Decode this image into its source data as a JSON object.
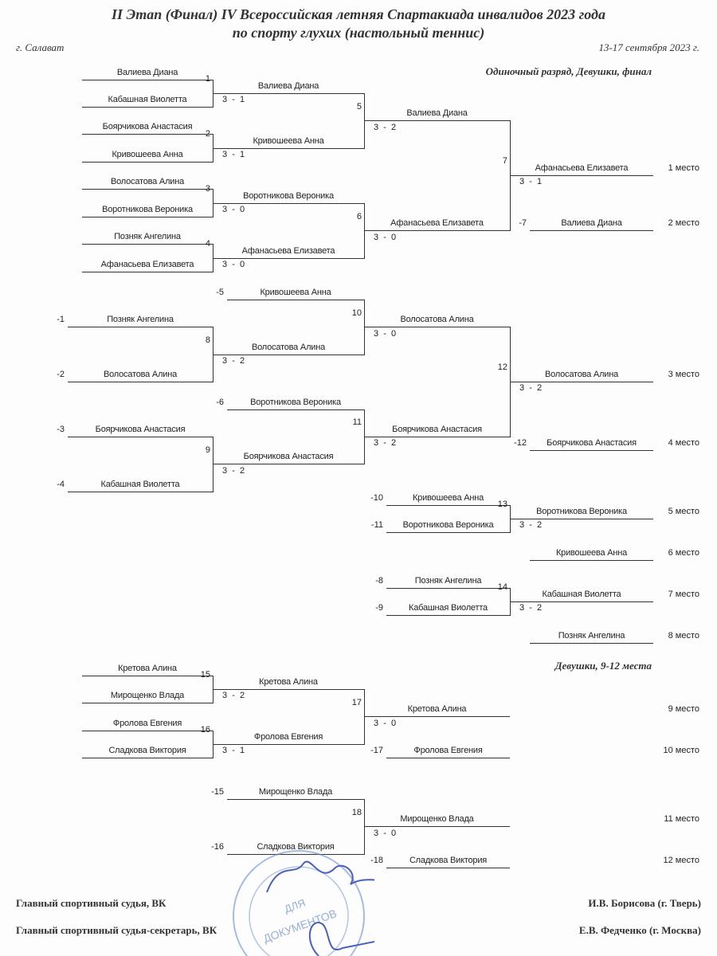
{
  "header": {
    "title_line1": "II Этап (Финал) IV Всероссийская летняя Спартакиада инвалидов 2023 года",
    "title_line2": "по спорту глухих (настольный теннис)",
    "city": "г. Салават",
    "dates": "13-17 сентября 2023 г."
  },
  "sections": {
    "main": "Одиночный разряд, Девушки, финал",
    "places_9_12": "Девушки, 9-12 места"
  },
  "slots": [
    {
      "name": "Валиева Диана"
    },
    {
      "name": "Кабашная Виолетта"
    },
    {
      "name": "Боярчикова Анастасия"
    },
    {
      "name": "Кривошеева Анна"
    },
    {
      "name": "Волосатова Алина"
    },
    {
      "name": "Воротникова Вероника"
    },
    {
      "name": "Позняк Ангелина"
    },
    {
      "name": "Афанасьева Елизавета"
    },
    {
      "name": "Валиева Диана"
    },
    {
      "name": "Кривошеева Анна"
    },
    {
      "name": "Воротникова Вероника"
    },
    {
      "name": "Афанасьева Елизавета"
    },
    {
      "name": "Валиева Диана"
    },
    {
      "name": "Афанасьева Елизавета"
    },
    {
      "name": "Афанасьева Елизавета"
    },
    {
      "name": "Валиева Диана",
      "prefix": "-7"
    },
    {
      "name": "Кривошеева Анна",
      "prefix": "-5"
    },
    {
      "name": "Позняк Ангелина",
      "prefix": "-1"
    },
    {
      "name": "Волосатова Алина"
    },
    {
      "name": "Волосатова Алина",
      "prefix": "-2"
    },
    {
      "name": "Волосатова Алина"
    },
    {
      "name": "Воротникова Вероника",
      "prefix": "-6"
    },
    {
      "name": "Боярчикова Анастасия",
      "prefix": "-3"
    },
    {
      "name": "Боярчикова Анастасия"
    },
    {
      "name": "Кабашная Виолетта",
      "prefix": "-4"
    },
    {
      "name": "Боярчикова Анастасия"
    },
    {
      "name": "Волосатова Алина"
    },
    {
      "name": "Боярчикова Анастасия",
      "prefix": "-12"
    },
    {
      "name": "Кривошеева Анна",
      "prefix": "-10"
    },
    {
      "name": "Воротникова Вероника",
      "prefix": "-11"
    },
    {
      "name": "Воротникова Вероника"
    },
    {
      "name": "Кривошеева Анна"
    },
    {
      "name": "Позняк Ангелина",
      "prefix": "-8"
    },
    {
      "name": "Кабашная Виолетта",
      "prefix": "-9"
    },
    {
      "name": "Кабашная Виолетта"
    },
    {
      "name": "Позняк Ангелина"
    },
    {
      "name": "Кретова Алина"
    },
    {
      "name": "Мирощенко Влада"
    },
    {
      "name": "Фролова Евгения"
    },
    {
      "name": "Сладкова Виктория"
    },
    {
      "name": "Кретова Алина"
    },
    {
      "name": "Фролова Евгения"
    },
    {
      "name": "Кретова Алина"
    },
    {
      "name": "Фролова Евгения",
      "prefix": "-17"
    },
    {
      "name": "Мирощенко Влада",
      "prefix": "-15"
    },
    {
      "name": "Сладкова Виктория",
      "prefix": "-16"
    },
    {
      "name": "Мирощенко Влада"
    },
    {
      "name": "Сладкова Виктория",
      "prefix": "-18"
    }
  ],
  "matches": [
    {
      "number": "1",
      "score": "3  -  1"
    },
    {
      "number": "2",
      "score": "3  -  1"
    },
    {
      "number": "3",
      "score": "3  -  0"
    },
    {
      "number": "4",
      "score": "3  -  0"
    },
    {
      "number": "5",
      "score": "3  -  2"
    },
    {
      "number": "6",
      "score": "3  -  0"
    },
    {
      "number": "7",
      "score": "3  -  1"
    },
    {
      "number": "8",
      "score": "3  -  2"
    },
    {
      "number": "10",
      "score": "3  -  0"
    },
    {
      "number": "9",
      "score": "3  -  2"
    },
    {
      "number": "11",
      "score": "3  -  2"
    },
    {
      "number": "12",
      "score": "3  -  2"
    },
    {
      "number": "13",
      "score": "3  -  2"
    },
    {
      "number": "14",
      "score": "3  -  2"
    },
    {
      "number": "15",
      "score": "3  -  2"
    },
    {
      "number": "16",
      "score": "3  -  1"
    },
    {
      "number": "17",
      "score": "3  -  0"
    },
    {
      "number": "18",
      "score": "3  -  0"
    }
  ],
  "places": [
    "1 место",
    "2 место",
    "3 место",
    "4 место",
    "5 место",
    "6 место",
    "7 место",
    "8 место",
    "9 место",
    "10 место",
    "11 место",
    "12 место"
  ],
  "footer": {
    "judge_label": "Главный спортивный судья, ВК",
    "judge_name": "И.В. Борисова (г. Тверь)",
    "secretary_label": "Главный спортивный судья-секретарь, ВК",
    "secretary_name": "Е.В. Федченко (г. Москва)"
  },
  "stamp": {
    "text": "ДЛЯ ДОКУМЕНТОВ",
    "color": "#6a8fd0"
  }
}
